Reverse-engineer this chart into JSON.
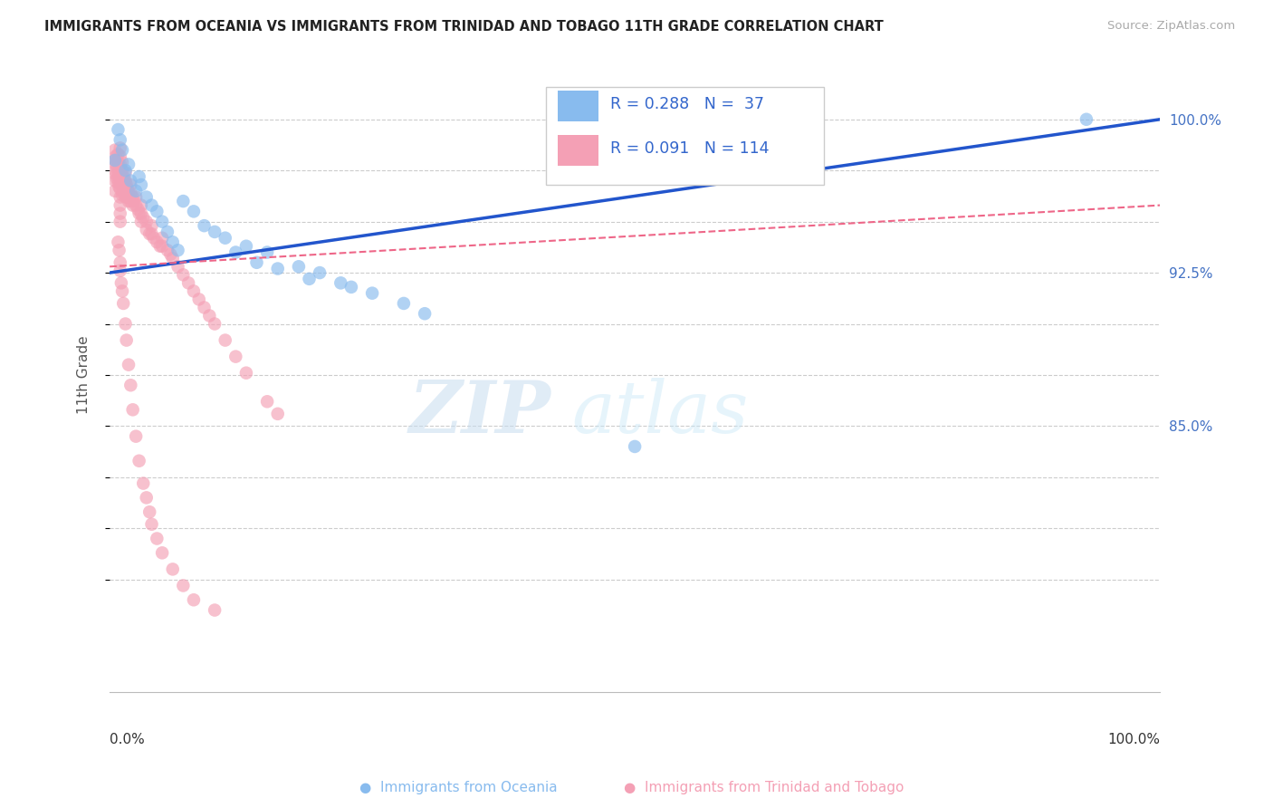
{
  "title": "IMMIGRANTS FROM OCEANIA VS IMMIGRANTS FROM TRINIDAD AND TOBAGO 11TH GRADE CORRELATION CHART",
  "source": "Source: ZipAtlas.com",
  "ylabel": "11th Grade",
  "color_blue": "#88bbee",
  "color_pink": "#f4a0b5",
  "color_blue_line": "#2255cc",
  "color_pink_line": "#ee6688",
  "watermark_zip": "ZIP",
  "watermark_atlas": "atlas",
  "xlim": [
    0.0,
    1.0
  ],
  "ylim": [
    0.72,
    1.03
  ],
  "ytick_positions": [
    0.775,
    0.8,
    0.825,
    0.85,
    0.875,
    0.9,
    0.925,
    0.95,
    0.975,
    1.0
  ],
  "ytick_labels": [
    "",
    "",
    "",
    "85.0%",
    "",
    "",
    "92.5%",
    "",
    "",
    "100.0%"
  ],
  "blue_x": [
    0.005,
    0.008,
    0.01,
    0.012,
    0.015,
    0.018,
    0.02,
    0.025,
    0.028,
    0.03,
    0.035,
    0.04,
    0.045,
    0.05,
    0.055,
    0.06,
    0.065,
    0.07,
    0.08,
    0.09,
    0.1,
    0.11,
    0.13,
    0.15,
    0.18,
    0.2,
    0.22,
    0.25,
    0.28,
    0.3,
    0.12,
    0.14,
    0.16,
    0.19,
    0.23,
    0.5,
    0.93
  ],
  "blue_y": [
    0.98,
    0.995,
    0.99,
    0.985,
    0.975,
    0.978,
    0.97,
    0.965,
    0.972,
    0.968,
    0.962,
    0.958,
    0.955,
    0.95,
    0.945,
    0.94,
    0.936,
    0.96,
    0.955,
    0.948,
    0.945,
    0.942,
    0.938,
    0.935,
    0.928,
    0.925,
    0.92,
    0.915,
    0.91,
    0.905,
    0.935,
    0.93,
    0.927,
    0.922,
    0.918,
    0.84,
    1.0
  ],
  "pink_x": [
    0.005,
    0.005,
    0.005,
    0.005,
    0.005,
    0.006,
    0.006,
    0.006,
    0.007,
    0.007,
    0.007,
    0.008,
    0.008,
    0.008,
    0.008,
    0.009,
    0.009,
    0.009,
    0.01,
    0.01,
    0.01,
    0.01,
    0.01,
    0.01,
    0.01,
    0.01,
    0.01,
    0.01,
    0.012,
    0.012,
    0.012,
    0.012,
    0.012,
    0.013,
    0.013,
    0.013,
    0.014,
    0.014,
    0.015,
    0.015,
    0.015,
    0.015,
    0.016,
    0.016,
    0.017,
    0.017,
    0.018,
    0.018,
    0.02,
    0.02,
    0.02,
    0.022,
    0.022,
    0.023,
    0.025,
    0.025,
    0.027,
    0.028,
    0.03,
    0.03,
    0.03,
    0.032,
    0.035,
    0.035,
    0.038,
    0.04,
    0.04,
    0.042,
    0.045,
    0.048,
    0.05,
    0.05,
    0.055,
    0.058,
    0.06,
    0.065,
    0.07,
    0.075,
    0.08,
    0.085,
    0.09,
    0.095,
    0.1,
    0.11,
    0.12,
    0.13,
    0.15,
    0.16,
    0.008,
    0.009,
    0.01,
    0.01,
    0.011,
    0.012,
    0.013,
    0.015,
    0.016,
    0.018,
    0.02,
    0.022,
    0.025,
    0.028,
    0.032,
    0.035,
    0.038,
    0.04,
    0.045,
    0.05,
    0.06,
    0.07,
    0.08,
    0.1
  ],
  "pink_y": [
    0.985,
    0.98,
    0.975,
    0.97,
    0.965,
    0.982,
    0.978,
    0.973,
    0.98,
    0.976,
    0.971,
    0.983,
    0.979,
    0.974,
    0.969,
    0.977,
    0.972,
    0.967,
    0.986,
    0.982,
    0.978,
    0.974,
    0.97,
    0.966,
    0.962,
    0.958,
    0.954,
    0.95,
    0.979,
    0.975,
    0.971,
    0.967,
    0.963,
    0.972,
    0.968,
    0.964,
    0.97,
    0.966,
    0.974,
    0.97,
    0.966,
    0.962,
    0.968,
    0.964,
    0.966,
    0.962,
    0.964,
    0.96,
    0.968,
    0.964,
    0.96,
    0.962,
    0.958,
    0.96,
    0.962,
    0.958,
    0.956,
    0.954,
    0.958,
    0.954,
    0.95,
    0.952,
    0.95,
    0.946,
    0.944,
    0.948,
    0.944,
    0.942,
    0.94,
    0.938,
    0.942,
    0.938,
    0.936,
    0.934,
    0.932,
    0.928,
    0.924,
    0.92,
    0.916,
    0.912,
    0.908,
    0.904,
    0.9,
    0.892,
    0.884,
    0.876,
    0.862,
    0.856,
    0.94,
    0.936,
    0.93,
    0.926,
    0.92,
    0.916,
    0.91,
    0.9,
    0.892,
    0.88,
    0.87,
    0.858,
    0.845,
    0.833,
    0.822,
    0.815,
    0.808,
    0.802,
    0.795,
    0.788,
    0.78,
    0.772,
    0.765,
    0.76
  ]
}
